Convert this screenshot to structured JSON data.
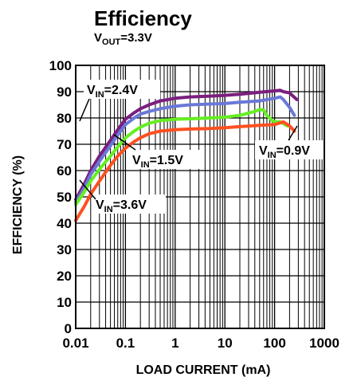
{
  "chart_data": {
    "type": "line",
    "title": "Efficiency",
    "subtitle": "V_OUT=3.3V",
    "subtitle_parts": {
      "main": "V",
      "sub": "OUT",
      "rest": "=3.3V"
    },
    "xlabel": "LOAD CURRENT (mA)",
    "ylabel": "EFFICIENCY (%)",
    "xscale": "log",
    "xlim": [
      0.01,
      1000
    ],
    "ylim": [
      0,
      100
    ],
    "xticks": [
      0.01,
      0.1,
      1,
      10,
      100,
      1000
    ],
    "xtick_labels": [
      "0.01",
      "0.1",
      "1",
      "10",
      "100",
      "1000"
    ],
    "yticks": [
      0,
      10,
      20,
      30,
      40,
      50,
      60,
      70,
      80,
      90,
      100
    ],
    "ytick_labels": [
      "0",
      "10",
      "20",
      "30",
      "40",
      "50",
      "60",
      "70",
      "80",
      "90",
      "100"
    ],
    "grid": true,
    "series": [
      {
        "name": "V_IN=2.4V",
        "label_parts": {
          "main": "V",
          "sub": "IN",
          "rest": "=2.4V"
        },
        "color": "#7b1f7f",
        "x": [
          0.01,
          0.015,
          0.02,
          0.03,
          0.05,
          0.07,
          0.1,
          0.15,
          0.2,
          0.3,
          0.5,
          1,
          2,
          5,
          10,
          20,
          50,
          100,
          130,
          150,
          200,
          280
        ],
        "y": [
          49,
          55,
          60,
          65.5,
          71.5,
          75.5,
          79.5,
          82,
          83.5,
          85,
          86.5,
          87.5,
          88,
          88.3,
          88.6,
          89,
          89.8,
          90.3,
          90.5,
          90,
          89.5,
          87
        ]
      },
      {
        "name": "V_IN=1.5V",
        "label_parts": {
          "main": "V",
          "sub": "IN",
          "rest": "=1.5V"
        },
        "color": "#6a78d8",
        "x": [
          0.01,
          0.015,
          0.02,
          0.03,
          0.05,
          0.07,
          0.1,
          0.15,
          0.2,
          0.3,
          0.5,
          1,
          2,
          5,
          10,
          20,
          50,
          100,
          130,
          150,
          200,
          250
        ],
        "y": [
          48,
          53.5,
          58.5,
          63.5,
          69.5,
          73.5,
          77.5,
          80,
          81.5,
          82.5,
          83.5,
          84.5,
          85,
          85.3,
          85.5,
          86,
          86.5,
          87.5,
          88,
          87,
          84,
          81
        ]
      },
      {
        "name": "V_IN=0.9V",
        "label_parts": {
          "main": "V",
          "sub": "IN",
          "rest": "=0.9V"
        },
        "color": "#66ee22",
        "x": [
          0.01,
          0.015,
          0.02,
          0.03,
          0.05,
          0.07,
          0.1,
          0.15,
          0.2,
          0.3,
          0.5,
          1,
          2,
          5,
          10,
          20,
          40,
          50,
          60,
          70,
          90,
          100,
          130,
          180
        ],
        "y": [
          47,
          52,
          56,
          60.5,
          65.5,
          69,
          72.5,
          75,
          76.5,
          78,
          79,
          79.5,
          79.7,
          80,
          80.3,
          81,
          82.5,
          83.2,
          83,
          81,
          79,
          78.5,
          78.5,
          77
        ]
      },
      {
        "name": "V_IN=3.6V",
        "label_parts": {
          "main": "V",
          "sub": "IN",
          "rest": "=3.6V"
        },
        "color": "#ff5020",
        "x": [
          0.01,
          0.015,
          0.02,
          0.03,
          0.05,
          0.07,
          0.1,
          0.15,
          0.2,
          0.3,
          0.5,
          1,
          2,
          5,
          10,
          20,
          50,
          100,
          150,
          200,
          250
        ],
        "y": [
          41,
          46.5,
          51,
          56,
          62,
          65.5,
          68.5,
          71,
          72.5,
          74,
          75,
          75.5,
          75.8,
          76,
          76.3,
          76.7,
          77.2,
          77.5,
          78.5,
          77,
          75
        ]
      }
    ],
    "annotations": [
      {
        "parts": {
          "main": "V",
          "sub": "IN",
          "rest": "=2.4V"
        },
        "series": 0
      },
      {
        "parts": {
          "main": "V",
          "sub": "IN",
          "rest": "=1.5V"
        },
        "series": 1
      },
      {
        "parts": {
          "main": "V",
          "sub": "IN",
          "rest": "=0.9V"
        },
        "series": 2
      },
      {
        "parts": {
          "main": "V",
          "sub": "IN",
          "rest": "=3.6V"
        },
        "series": 3
      }
    ]
  }
}
